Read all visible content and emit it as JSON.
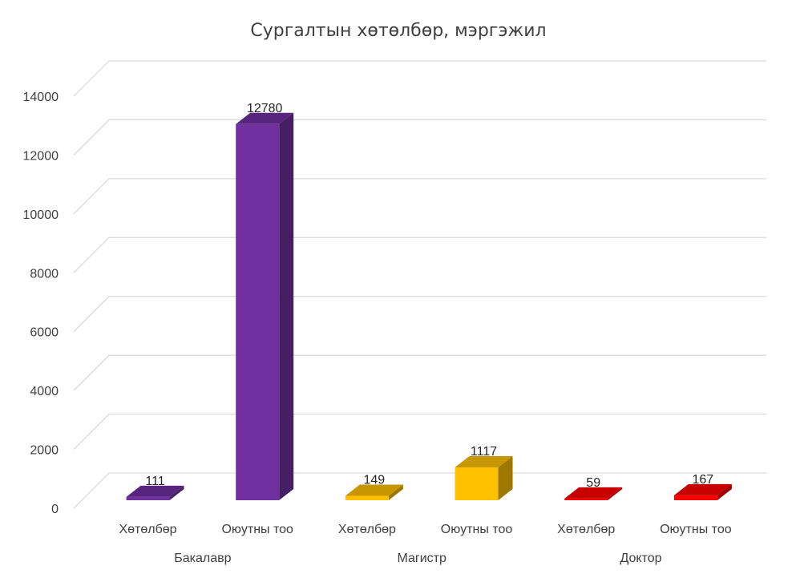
{
  "chart_data": {
    "type": "bar",
    "title": "Сургалтын хөтөлбөр, мэргэжил",
    "xlabel": "",
    "ylabel": "",
    "ylim": [
      0,
      14000
    ],
    "yticks": [
      0,
      2000,
      4000,
      6000,
      8000,
      10000,
      12000,
      14000
    ],
    "grid": true,
    "three_d": true,
    "groups": [
      {
        "name": "Бакалавр",
        "color": "#7030a0",
        "bars": [
          {
            "label": "Хөтөлбөр",
            "value": 111
          },
          {
            "label": "Оюутны тоо",
            "value": 12780
          }
        ]
      },
      {
        "name": "Магистр",
        "color": "#ffc000",
        "bars": [
          {
            "label": "Хөтөлбөр",
            "value": 149
          },
          {
            "label": "Оюутны тоо",
            "value": 1117
          }
        ]
      },
      {
        "name": "Доктор",
        "color": "#ff0000",
        "bars": [
          {
            "label": "Хөтөлбөр",
            "value": 59
          },
          {
            "label": "Оюутны тоо",
            "value": 167
          }
        ]
      }
    ]
  }
}
